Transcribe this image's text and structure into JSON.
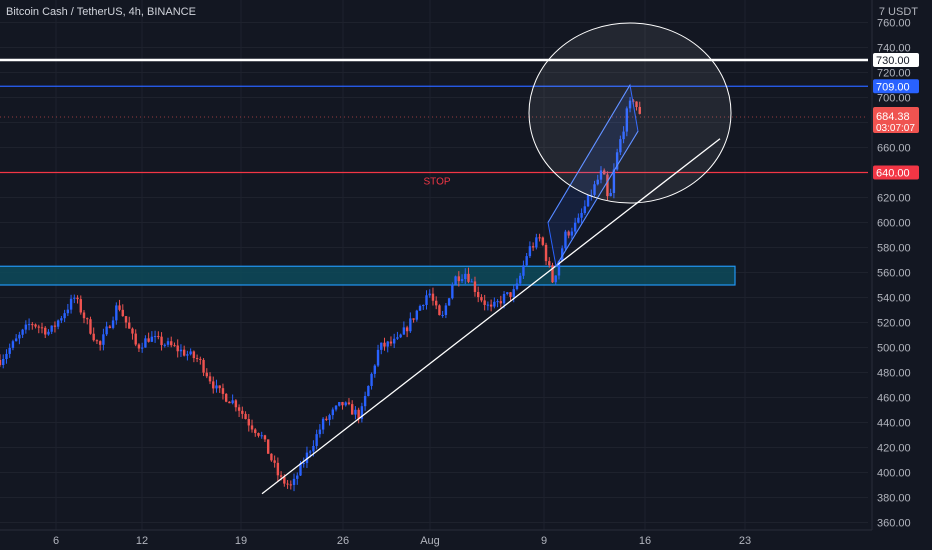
{
  "header": {
    "symbol_title": "Bitcoin Cash / TetherUS, 4h, BINANCE",
    "currency_unit": "7 USDT"
  },
  "colors": {
    "background": "#131722",
    "bull": "#2962ff",
    "bear": "#ef5350",
    "resistance_white": "#ffffff",
    "resistance_blue": "#2962ff",
    "stop_red": "#f23645",
    "zone_fill": "#0d4a5a",
    "zone_border": "#2196f3",
    "axis_text": "#b2b5be"
  },
  "price_axis": {
    "ticks": [
      "760.00",
      "740.00",
      "720.00",
      "700.00",
      "680.00",
      "660.00",
      "640.00",
      "620.00",
      "600.00",
      "580.00",
      "560.00",
      "540.00",
      "520.00",
      "500.00",
      "480.00",
      "460.00",
      "440.00",
      "420.00",
      "400.00",
      "380.00",
      "360.00"
    ],
    "range": [
      354,
      778
    ]
  },
  "time_axis": {
    "ticks": [
      "6",
      "12",
      "19",
      "26",
      "Aug",
      "9",
      "16",
      "23"
    ]
  },
  "levels": {
    "resistance_white": {
      "price": 730,
      "label": "730.00"
    },
    "resistance_blue": {
      "price": 709,
      "label": "709.00"
    },
    "stop": {
      "price": 640,
      "label": "640.00",
      "text": "STOP"
    },
    "current": {
      "price": 684.38,
      "label": "684.38",
      "countdown": "03:07:07"
    }
  },
  "zone": {
    "price_low": 550,
    "price_high": 565
  },
  "chart_data": {
    "type": "candlestick",
    "title": "Bitcoin Cash / TetherUS, 4h, BINANCE",
    "y_unit": "USDT",
    "x_ticks": [
      "6",
      "12",
      "19",
      "26",
      "Aug",
      "9",
      "16",
      "23"
    ],
    "ylim": [
      354,
      778
    ],
    "close_path": [
      [
        0,
        490
      ],
      [
        5,
        520
      ],
      [
        8,
        512
      ],
      [
        12,
        540
      ],
      [
        16,
        500
      ],
      [
        19,
        535
      ],
      [
        22,
        500
      ],
      [
        24,
        508
      ],
      [
        28,
        500
      ],
      [
        32,
        490
      ],
      [
        35,
        465
      ],
      [
        38,
        455
      ],
      [
        40,
        440
      ],
      [
        42,
        430
      ],
      [
        45,
        395
      ],
      [
        47,
        388
      ],
      [
        48,
        400
      ],
      [
        52,
        440
      ],
      [
        55,
        455
      ],
      [
        58,
        445
      ],
      [
        61,
        500
      ],
      [
        64,
        505
      ],
      [
        66,
        520
      ],
      [
        69,
        545
      ],
      [
        71,
        520
      ],
      [
        73,
        555
      ],
      [
        75,
        560
      ],
      [
        77,
        542
      ],
      [
        79,
        530
      ],
      [
        81,
        540
      ],
      [
        83,
        545
      ],
      [
        85,
        578
      ],
      [
        87,
        588
      ],
      [
        89,
        552
      ],
      [
        91,
        590
      ],
      [
        93,
        600
      ],
      [
        95,
        622
      ],
      [
        97,
        642
      ],
      [
        98,
        612
      ],
      [
        99,
        648
      ],
      [
        101,
        690
      ],
      [
        102,
        700
      ],
      [
        103,
        684
      ]
    ],
    "last_price": 684.38
  },
  "annotations": {
    "trendline": "white ascending support",
    "channel": "blue ascending channel",
    "circle": "highlight ellipse"
  }
}
